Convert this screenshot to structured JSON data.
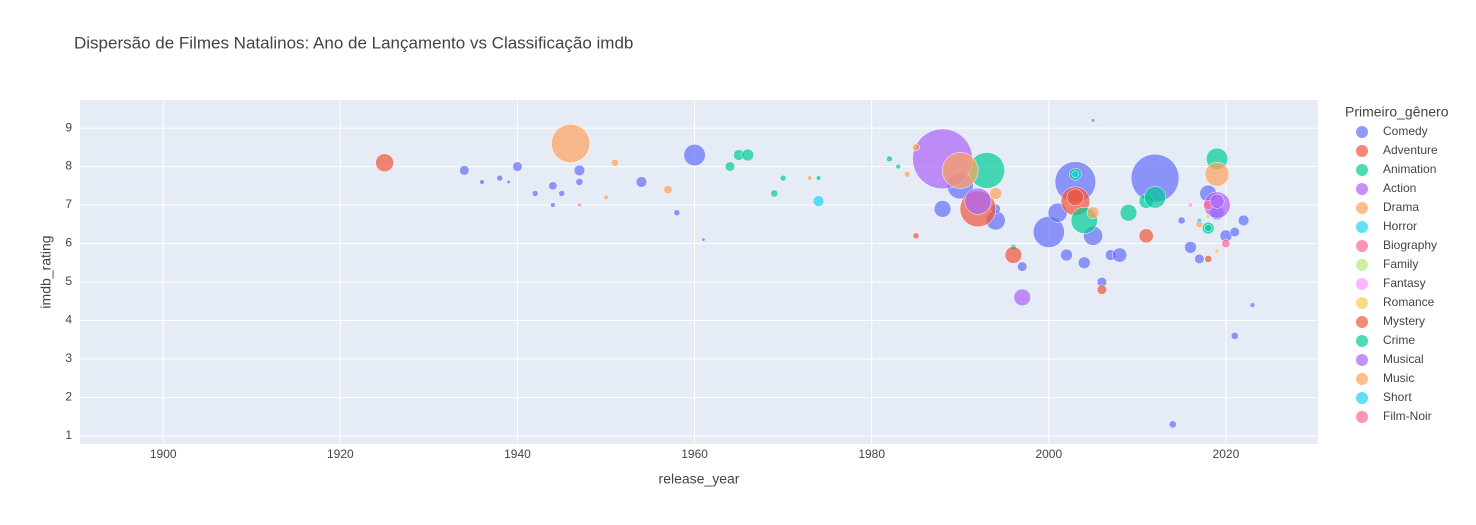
{
  "chart_data": {
    "type": "scatter",
    "title": "Dispersão de Filmes Natalinos: Ano de Lançamento vs Classificação imdb",
    "x_label": "release_year",
    "y_label": "imdb_rating",
    "legend_title": "Primeiro_gênero",
    "xlim": [
      1890.6,
      2030.4
    ],
    "xticks": [
      1900,
      1920,
      1940,
      1960,
      1980,
      2000,
      2020
    ],
    "ylim": [
      0.79,
      9.73
    ],
    "yticks": [
      1,
      2,
      3,
      4,
      5,
      6,
      7,
      8,
      9
    ],
    "grid": true,
    "legend": "right",
    "series": [
      {
        "name": "Comedy",
        "color": "#636efa",
        "x": [
          1934,
          1936,
          1938,
          1939,
          1940,
          1942,
          1944,
          1944,
          1945,
          1947,
          1947,
          1954,
          1958,
          1960,
          1961,
          1988,
          1990,
          1994,
          1994,
          1997,
          2000,
          2001,
          2002,
          2003,
          2004,
          2005,
          2005,
          2006,
          2007,
          2008,
          2012,
          2014,
          2016,
          2018,
          2019,
          2020,
          2021,
          2021,
          2022,
          2023,
          2017,
          2015
        ],
        "y": [
          7.9,
          7.6,
          7.7,
          7.6,
          8.0,
          7.3,
          7.5,
          7.0,
          7.3,
          7.9,
          7.6,
          7.6,
          6.8,
          8.3,
          6.1,
          6.9,
          7.5,
          6.6,
          6.9,
          5.4,
          6.3,
          6.8,
          5.7,
          7.6,
          5.5,
          6.2,
          9.2,
          5.0,
          5.7,
          5.7,
          7.7,
          1.3,
          5.9,
          7.3,
          6.8,
          6.2,
          6.3,
          3.6,
          6.6,
          4.4,
          5.6,
          6.6
        ],
        "sizes": [
          8,
          4,
          5,
          3,
          8,
          5,
          7,
          4,
          5,
          9,
          6,
          9,
          5,
          18,
          3,
          14,
          22,
          16,
          8,
          8,
          26,
          16,
          10,
          34,
          10,
          16,
          3,
          8,
          9,
          12,
          40,
          6,
          10,
          14,
          12,
          10,
          8,
          6,
          9,
          4,
          8,
          6
        ]
      },
      {
        "name": "Adventure",
        "color": "#EF553B",
        "x": [
          1925,
          1985,
          1992,
          2003,
          2006,
          2011,
          2018
        ],
        "y": [
          8.1,
          6.2,
          6.9,
          7.1,
          4.8,
          6.2,
          5.6
        ],
        "sizes": [
          15,
          5,
          30,
          24,
          8,
          12,
          6
        ]
      },
      {
        "name": "Animation",
        "color": "#00cc96",
        "x": [
          1964,
          1965,
          1966,
          1969,
          1970,
          1974,
          1982,
          1983,
          1993,
          2003,
          2004,
          2009,
          2011,
          2012,
          2019,
          2018,
          1996
        ],
        "y": [
          8.0,
          8.3,
          8.3,
          7.3,
          7.7,
          7.7,
          8.2,
          8.0,
          7.9,
          7.8,
          6.6,
          6.8,
          7.1,
          7.2,
          8.2,
          6.4,
          5.9
        ],
        "sizes": [
          8,
          9,
          10,
          6,
          5,
          4,
          5,
          4,
          30,
          10,
          22,
          14,
          12,
          18,
          18,
          10,
          5
        ]
      },
      {
        "name": "Action",
        "color": "#ab63fa",
        "x": [
          1988,
          1992,
          1997,
          2019
        ],
        "y": [
          8.2,
          7.1,
          4.6,
          7.0
        ],
        "sizes": [
          50,
          22,
          14,
          22
        ]
      },
      {
        "name": "Drama",
        "color": "#FFA15A",
        "x": [
          1946,
          1951,
          1957,
          1973,
          1984,
          1985,
          1990,
          1994,
          2005,
          2019,
          2017
        ],
        "y": [
          8.6,
          8.1,
          7.4,
          7.7,
          7.8,
          8.5,
          7.9,
          7.3,
          6.8,
          7.8,
          6.5
        ],
        "sizes": [
          32,
          6,
          7,
          4,
          5,
          6,
          30,
          10,
          10,
          20,
          6
        ]
      },
      {
        "name": "Horror",
        "color": "#19d3f3",
        "x": [
          1974,
          2003
        ],
        "y": [
          7.1,
          7.8
        ],
        "sizes": [
          9,
          6
        ]
      },
      {
        "name": "Biography",
        "color": "#FF6692",
        "x": [
          2018,
          2020
        ],
        "y": [
          7.0,
          6.0
        ],
        "sizes": [
          8,
          7
        ]
      },
      {
        "name": "Family",
        "color": "#B6E880",
        "x": [
          2018
        ],
        "y": [
          6.7
        ],
        "sizes": [
          4
        ]
      },
      {
        "name": "Fantasy",
        "color": "#FF97FF",
        "x": [
          2016
        ],
        "y": [
          7.0
        ],
        "sizes": [
          4
        ]
      },
      {
        "name": "Romance",
        "color": "#FECB52",
        "x": [
          2019
        ],
        "y": [
          5.8
        ],
        "sizes": [
          4
        ]
      },
      {
        "name": "Mystery",
        "color": "#EF553B",
        "x": [
          1996,
          2003
        ],
        "y": [
          5.7,
          7.2
        ],
        "sizes": [
          14,
          14
        ]
      },
      {
        "name": "Crime",
        "color": "#00cc96",
        "x": [
          2018
        ],
        "y": [
          6.4
        ],
        "sizes": [
          6
        ]
      },
      {
        "name": "Musical",
        "color": "#ab63fa",
        "x": [
          2019
        ],
        "y": [
          7.1
        ],
        "sizes": [
          12
        ]
      },
      {
        "name": "Music",
        "color": "#FFA15A",
        "x": [
          1950
        ],
        "y": [
          7.2
        ],
        "sizes": [
          4
        ]
      },
      {
        "name": "Short",
        "color": "#19d3f3",
        "x": [
          2017
        ],
        "y": [
          6.6
        ],
        "sizes": [
          4
        ]
      },
      {
        "name": "Film-Noir",
        "color": "#FF6692",
        "x": [
          1947
        ],
        "y": [
          7.0
        ],
        "sizes": [
          3
        ]
      }
    ]
  }
}
